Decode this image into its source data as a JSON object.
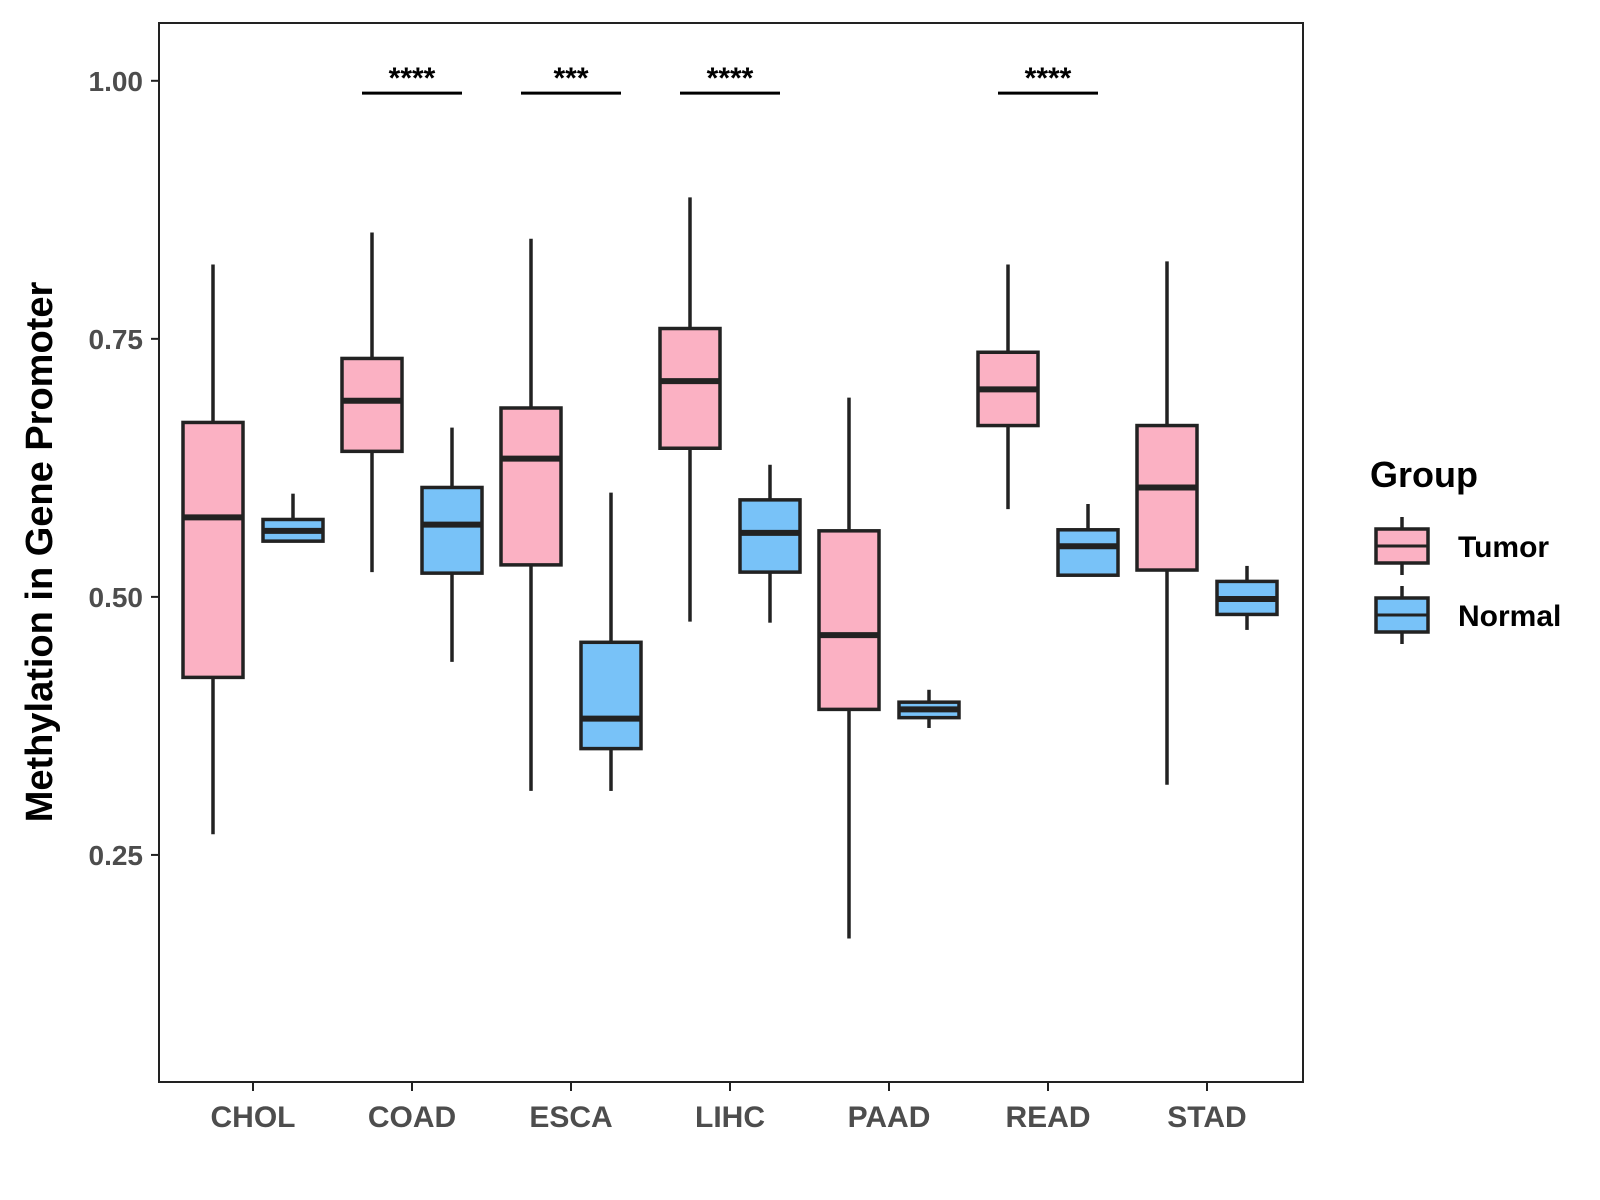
{
  "chart_data": {
    "type": "boxplot",
    "ylabel": "Methylation in Gene Promoter",
    "xlabel": "",
    "ylim": [
      0.03,
      1.056
    ],
    "yticks": [
      "0.25",
      "0.50",
      "0.75",
      "1.00"
    ],
    "categories": [
      "CHOL",
      "COAD",
      "ESCA",
      "LIHC",
      "PAAD",
      "READ",
      "STAD"
    ],
    "legend": {
      "title": "Group",
      "position": "right",
      "entries": [
        "Tumor",
        "Normal"
      ]
    },
    "colors": {
      "Tumor": "#fbb1c3",
      "Normal": "#78c2f8",
      "outline": "#222222"
    },
    "series": [
      {
        "name": "Tumor",
        "boxes": [
          {
            "min": 0.27,
            "q1": 0.422,
            "median": 0.577,
            "q3": 0.669,
            "max": 0.822
          },
          {
            "min": 0.524,
            "q1": 0.641,
            "median": 0.69,
            "q3": 0.731,
            "max": 0.853
          },
          {
            "min": 0.312,
            "q1": 0.531,
            "median": 0.634,
            "q3": 0.683,
            "max": 0.847
          },
          {
            "min": 0.476,
            "q1": 0.644,
            "median": 0.709,
            "q3": 0.76,
            "max": 0.887
          },
          {
            "min": 0.169,
            "q1": 0.391,
            "median": 0.463,
            "q3": 0.564,
            "max": 0.693
          },
          {
            "min": 0.585,
            "q1": 0.666,
            "median": 0.701,
            "q3": 0.737,
            "max": 0.822
          },
          {
            "min": 0.318,
            "q1": 0.526,
            "median": 0.606,
            "q3": 0.666,
            "max": 0.825
          }
        ]
      },
      {
        "name": "Normal",
        "boxes": [
          {
            "min": 0.553,
            "q1": 0.554,
            "median": 0.564,
            "q3": 0.575,
            "max": 0.6
          },
          {
            "min": 0.437,
            "q1": 0.523,
            "median": 0.57,
            "q3": 0.606,
            "max": 0.664
          },
          {
            "min": 0.312,
            "q1": 0.353,
            "median": 0.382,
            "q3": 0.456,
            "max": 0.601
          },
          {
            "min": 0.475,
            "q1": 0.524,
            "median": 0.562,
            "q3": 0.594,
            "max": 0.628
          },
          {
            "min": 0.373,
            "q1": 0.383,
            "median": 0.391,
            "q3": 0.398,
            "max": 0.41
          },
          {
            "min": 0.52,
            "q1": 0.521,
            "median": 0.549,
            "q3": 0.565,
            "max": 0.59
          },
          {
            "min": 0.468,
            "q1": 0.483,
            "median": 0.498,
            "q3": 0.515,
            "max": 0.53
          }
        ]
      }
    ],
    "significance": [
      {
        "category": "COAD",
        "label": "****",
        "y": 0.988
      },
      {
        "category": "ESCA",
        "label": "***",
        "y": 0.988
      },
      {
        "category": "LIHC",
        "label": "****",
        "y": 0.988
      },
      {
        "category": "READ",
        "label": "****",
        "y": 0.988
      }
    ]
  }
}
